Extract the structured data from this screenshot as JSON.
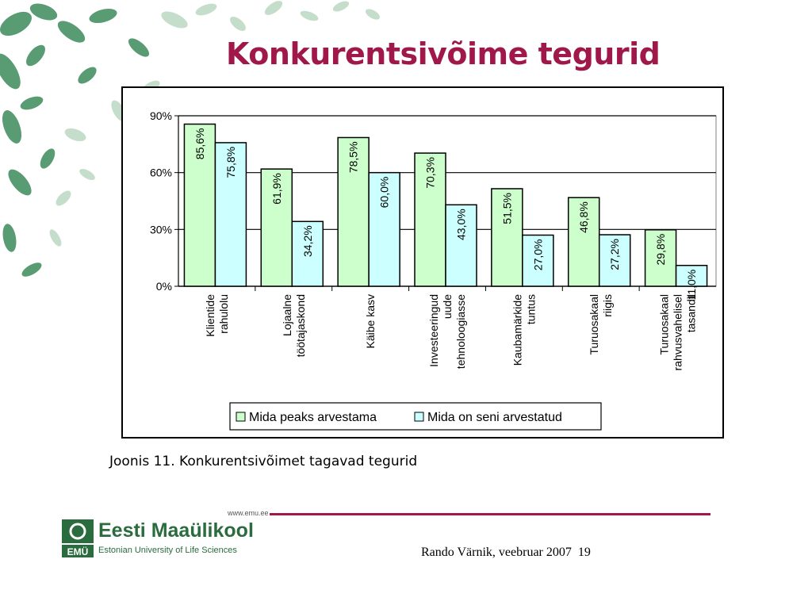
{
  "slide": {
    "title": "Konkurentsivõime tegurid",
    "caption": "Joonis 11. Konkurentsivõimet tagavad tegurid",
    "footer_url": "www.emu.ee",
    "footer_text": "Rando Värnik, veebruar 2007",
    "page_number": "19",
    "logo": {
      "name": "Eesti Maaülikool",
      "subtitle": "Estonian University of Life Sciences",
      "mark_text": "EMÜ"
    },
    "accent_color": "#a0184a",
    "logo_color": "#2a6c3e"
  },
  "chart_data": {
    "type": "bar",
    "categories": [
      [
        "Klientide",
        "rahulolu"
      ],
      [
        "Lojaalne",
        "töötajaskond"
      ],
      [
        "Käibe kasv"
      ],
      [
        "Investeeringud",
        "uude",
        "tehnoloogiasse"
      ],
      [
        "Kaubamärkide",
        "tuntus"
      ],
      [
        "Turuosakaal",
        "riigis"
      ],
      [
        "Turuosakaal",
        "rahvusvahelisel",
        "tasandil"
      ]
    ],
    "series": [
      {
        "name": "Mida peaks arvestama",
        "values": [
          85.6,
          61.9,
          78.5,
          70.3,
          51.5,
          46.8,
          29.8
        ],
        "labels": [
          "85,6%",
          "61,9%",
          "78,5%",
          "70,3%",
          "51,5%",
          "46,8%",
          "29,8%"
        ],
        "color": "#ccffcc"
      },
      {
        "name": "Mida on seni arvestatud",
        "values": [
          75.8,
          34.2,
          60.0,
          43.0,
          27.0,
          27.2,
          11.0
        ],
        "labels": [
          "75,8%",
          "34,2%",
          "60,0%",
          "43,0%",
          "27,0%",
          "27,2%",
          "11,0%"
        ],
        "color": "#ccffff"
      }
    ],
    "yticks": [
      "0%",
      "30%",
      "60%",
      "90%"
    ],
    "ylim": [
      0,
      90
    ],
    "grid": true,
    "legend": "bottom"
  }
}
